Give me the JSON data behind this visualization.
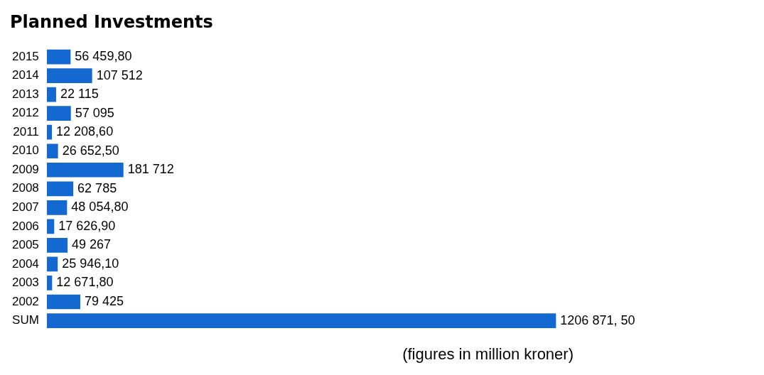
{
  "chart_data": {
    "type": "bar",
    "orientation": "horizontal",
    "title": "Planned Investments",
    "categories": [
      "2015",
      "2014",
      "2013",
      "2012",
      "2011",
      "2010",
      "2009",
      "2008",
      "2007",
      "2006",
      "2005",
      "2004",
      "2003",
      "2002",
      "SUM"
    ],
    "values": [
      56459.8,
      107512,
      22115,
      57095,
      12208.6,
      26652.5,
      181712,
      62785,
      48054.8,
      17626.9,
      49267,
      25946.1,
      12671.8,
      79425,
      1206871.5
    ],
    "value_labels": [
      "56 459,80",
      "107 512",
      "22 115",
      "57 095",
      "12 208,60",
      "26 652,50",
      "181 712",
      "62 785",
      "48 054,80",
      "17 626,90",
      "49 267",
      "25 946,10",
      "12 671,80",
      "79 425",
      "1206 871, 50"
    ],
    "color": "#1469d0",
    "legend": false,
    "tick_labels": "y",
    "annotations": [
      "(figures in million kroner)"
    ]
  }
}
